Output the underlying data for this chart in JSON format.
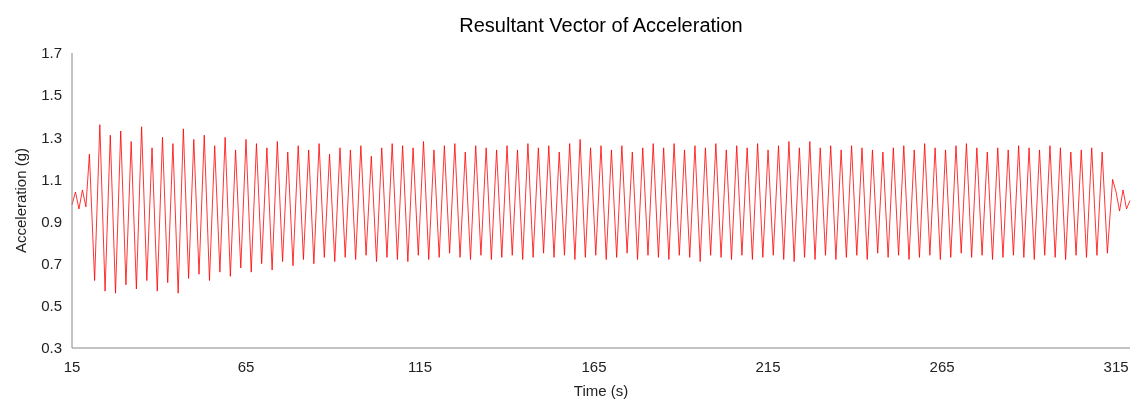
{
  "chart_data": {
    "type": "line",
    "title": "Resultant Vector of Acceleration",
    "xlabel": "Time (s)",
    "ylabel": "Acceleration (g)",
    "xlim": [
      15,
      319
    ],
    "xticks": [
      15,
      65,
      115,
      165,
      215,
      265,
      315
    ],
    "ylim": [
      0.3,
      1.7
    ],
    "yticks": [
      0.3,
      0.5,
      0.7,
      0.9,
      1.1,
      1.3,
      1.5,
      1.7
    ],
    "grid": false,
    "series": [
      {
        "color": "#ff0000",
        "x": [
          15,
          16,
          17,
          18,
          19,
          20,
          21.5,
          23,
          24.5,
          26,
          27.5,
          29,
          30.5,
          32,
          33.5,
          35,
          36.5,
          38,
          39.5,
          41,
          42.5,
          44,
          45.5,
          47,
          48.5,
          50,
          51.5,
          53,
          54.5,
          56,
          57.5,
          59,
          60.5,
          62,
          63.5,
          65,
          66.5,
          68,
          69.5,
          71,
          72.5,
          74,
          75.5,
          77,
          78.5,
          80,
          81.5,
          83,
          84.5,
          86,
          87.5,
          89,
          90.5,
          92,
          93.5,
          95,
          96.5,
          98,
          99.5,
          101,
          102.5,
          104,
          105.5,
          107,
          108.5,
          110,
          111.5,
          113,
          114.5,
          116,
          117.5,
          119,
          120.5,
          122,
          123.5,
          125,
          126.5,
          128,
          129.5,
          131,
          132.5,
          134,
          135.5,
          137,
          138.5,
          140,
          141.5,
          143,
          144.5,
          146,
          147.5,
          149,
          150.5,
          152,
          153.5,
          155,
          156.5,
          158,
          159.5,
          161,
          162.5,
          164,
          165.5,
          167,
          168.5,
          170,
          171.5,
          173,
          174.5,
          176,
          177.5,
          179,
          180.5,
          182,
          183.5,
          185,
          186.5,
          188,
          189.5,
          191,
          192.5,
          194,
          195.5,
          197,
          198.5,
          200,
          201.5,
          203,
          204.5,
          206,
          207.5,
          209,
          210.5,
          212,
          213.5,
          215,
          216.5,
          218,
          219.5,
          221,
          222.5,
          224,
          225.5,
          227,
          228.5,
          230,
          231.5,
          233,
          234.5,
          236,
          237.5,
          239,
          240.5,
          242,
          243.5,
          245,
          246.5,
          248,
          249.5,
          251,
          252.5,
          254,
          255.5,
          257,
          258.5,
          260,
          261.5,
          263,
          264.5,
          266,
          267.5,
          269,
          270.5,
          272,
          273.5,
          275,
          276.5,
          278,
          279.5,
          281,
          282.5,
          284,
          285.5,
          287,
          288.5,
          290,
          291.5,
          293,
          294.5,
          296,
          297.5,
          299,
          300.5,
          302,
          303.5,
          305,
          306.5,
          308,
          309.5,
          311,
          312.5,
          314,
          315,
          316,
          317,
          318,
          319
        ],
        "values": [
          0.98,
          1.04,
          0.96,
          1.05,
          0.97,
          1.22,
          0.62,
          1.36,
          0.57,
          1.31,
          0.56,
          1.33,
          0.6,
          1.28,
          0.58,
          1.35,
          0.62,
          1.25,
          0.57,
          1.3,
          0.61,
          1.27,
          0.56,
          1.34,
          0.63,
          1.29,
          0.65,
          1.31,
          0.62,
          1.26,
          0.66,
          1.3,
          0.64,
          1.24,
          0.68,
          1.29,
          0.66,
          1.27,
          0.7,
          1.25,
          0.67,
          1.28,
          0.71,
          1.23,
          0.69,
          1.26,
          0.72,
          1.24,
          0.7,
          1.27,
          0.73,
          1.22,
          0.71,
          1.25,
          0.73,
          1.24,
          0.72,
          1.26,
          0.74,
          1.21,
          0.71,
          1.25,
          0.73,
          1.27,
          0.72,
          1.26,
          0.71,
          1.25,
          0.74,
          1.28,
          0.72,
          1.24,
          0.73,
          1.26,
          0.75,
          1.27,
          0.73,
          1.23,
          0.72,
          1.26,
          0.74,
          1.25,
          0.72,
          1.24,
          0.73,
          1.26,
          0.74,
          1.24,
          0.72,
          1.27,
          0.73,
          1.25,
          0.75,
          1.26,
          0.73,
          1.23,
          0.74,
          1.27,
          0.72,
          1.29,
          0.73,
          1.25,
          0.74,
          1.26,
          0.72,
          1.24,
          0.73,
          1.26,
          0.75,
          1.23,
          0.72,
          1.25,
          0.74,
          1.27,
          0.73,
          1.25,
          0.72,
          1.27,
          0.74,
          1.24,
          0.73,
          1.26,
          0.71,
          1.25,
          0.74,
          1.27,
          0.73,
          1.24,
          0.72,
          1.26,
          0.74,
          1.25,
          0.72,
          1.27,
          0.73,
          1.24,
          0.74,
          1.26,
          0.72,
          1.28,
          0.71,
          1.25,
          0.73,
          1.28,
          0.72,
          1.25,
          0.74,
          1.26,
          0.72,
          1.24,
          0.73,
          1.26,
          0.74,
          1.25,
          0.72,
          1.24,
          0.75,
          1.23,
          0.73,
          1.25,
          0.74,
          1.26,
          0.72,
          1.24,
          0.73,
          1.27,
          0.74,
          1.25,
          0.72,
          1.24,
          0.73,
          1.26,
          0.75,
          1.27,
          0.73,
          1.25,
          0.74,
          1.23,
          0.72,
          1.25,
          0.73,
          1.24,
          0.74,
          1.26,
          0.73,
          1.25,
          0.72,
          1.24,
          0.74,
          1.26,
          0.73,
          1.25,
          0.72,
          1.23,
          0.74,
          1.24,
          0.73,
          1.25,
          0.74,
          1.23,
          0.75,
          1.1,
          1.04,
          0.95,
          1.05,
          0.96,
          1.0
        ]
      }
    ]
  }
}
